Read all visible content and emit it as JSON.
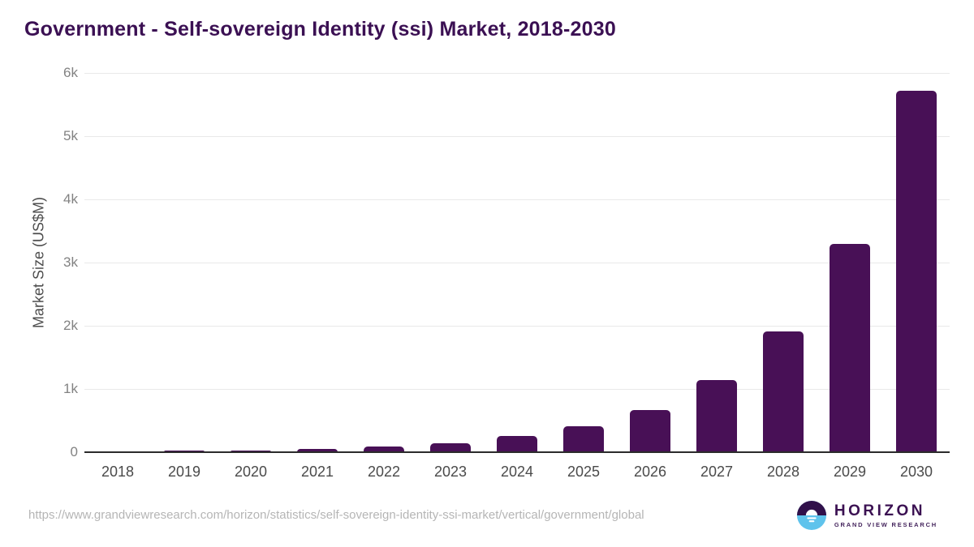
{
  "page_title": "Government - Self-sovereign Identity (ssi) Market, 2018-2030",
  "chart_data": {
    "type": "bar",
    "title": "Government - Self-sovereign Identity (ssi) Market, 2018-2030",
    "categories": [
      "2018",
      "2019",
      "2020",
      "2021",
      "2022",
      "2023",
      "2024",
      "2025",
      "2026",
      "2027",
      "2028",
      "2029",
      "2030"
    ],
    "values": [
      5,
      26,
      32,
      51,
      85,
      135,
      260,
      410,
      665,
      1140,
      1915,
      3295,
      5715
    ],
    "xlabel": "",
    "ylabel": "Market Size (US$M)",
    "ylim": [
      0,
      6000
    ],
    "ytick_values": [
      0,
      1000,
      2000,
      3000,
      4000,
      5000,
      6000
    ],
    "ytick_labels": [
      "0",
      "1k",
      "2k",
      "3k",
      "4k",
      "5k",
      "6k"
    ],
    "grid": true,
    "legend": false,
    "legend_position": "none",
    "bar_color": "#481056"
  },
  "footer": {
    "source_url": "https://www.grandviewresearch.com/horizon/statistics/self-sovereign-identity-ssi-market/vertical/government/global",
    "logo_name": "HORIZON",
    "logo_subtitle": "GRAND VIEW RESEARCH"
  },
  "colors": {
    "title_text": "#3b1053",
    "bar": "#481056",
    "axis_line": "#2b2b2b",
    "gridline": "#e9e9e9",
    "x_tick_text": "#4a4a4a",
    "y_tick_text": "#828282",
    "url_text": "#b5b5b5",
    "logo_purple": "#3b1152",
    "logo_blue": "#5fc3ec"
  }
}
